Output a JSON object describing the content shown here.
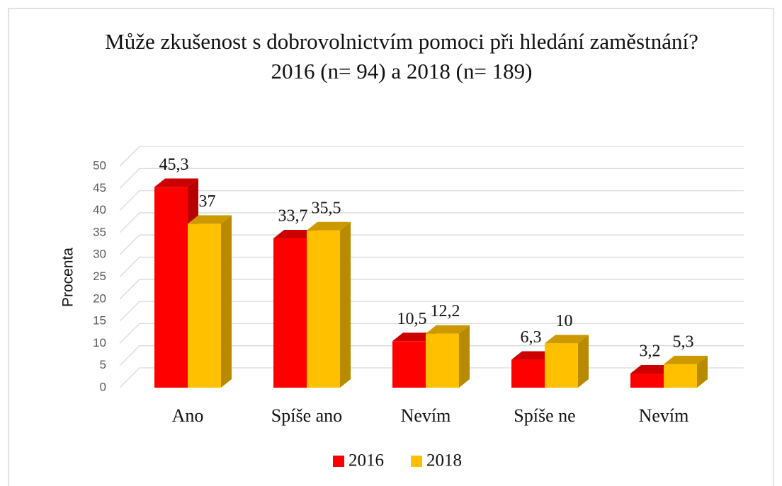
{
  "chart_data": {
    "type": "bar3d",
    "title": "Může zkušenost s dobrovolnictvím pomoci při hledání zaměstnání?",
    "subtitle": "2016 (n= 94) a 2018 (n= 189)",
    "y_label": "Procenta",
    "categories": [
      "Ano",
      "Spíše ano",
      "Nevím",
      "Spíše ne",
      "Nevím"
    ],
    "series": [
      {
        "name": "2016",
        "color": "#ff0000",
        "values": [
          45.3,
          33.7,
          10.5,
          6.3,
          3.2
        ],
        "value_labels": [
          "45,3",
          "33,7",
          "10,5",
          "6,3",
          "3,2"
        ]
      },
      {
        "name": "2018",
        "color": "#ffc000",
        "values": [
          37,
          35.5,
          12.2,
          10,
          5.3
        ],
        "value_labels": [
          "37",
          "35,5",
          "12,2",
          "10",
          "5,3"
        ]
      }
    ],
    "ylim": [
      0,
      50
    ],
    "yticks": [
      0,
      5,
      10,
      15,
      20,
      25,
      30,
      35,
      40,
      45,
      50
    ],
    "grid": true,
    "legend": "bottom"
  }
}
